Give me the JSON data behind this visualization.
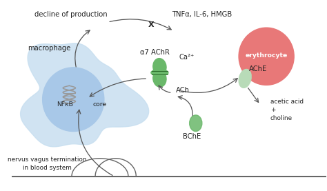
{
  "bg_color": "#ffffff",
  "macrophage_blob_color": "#c8dff0",
  "core_circle_color": "#a8c8e8",
  "erythrocyte_color": "#e87878",
  "enzyme_color": "#6ab86a",
  "enzyme_light_color": "#b8dbb8",
  "text_color": "#222222",
  "arrow_color": "#555555",
  "line_color": "#666666",
  "labels": {
    "macrophage": "macrophage",
    "nfkb": "NFκB",
    "core": "core",
    "alpha7": "α7 AChR",
    "ca2": "Ca²⁺",
    "ach": "ACh",
    "ache": "AChE",
    "bche": "BChE",
    "acetic": "acetic acid\n+\ncholine",
    "erythrocyte": "erythrocyte",
    "decline": "decline of production",
    "tnf": "TNFα, IL-6, HMGB",
    "nervus": "nervus vagus termination\nin blood system"
  }
}
